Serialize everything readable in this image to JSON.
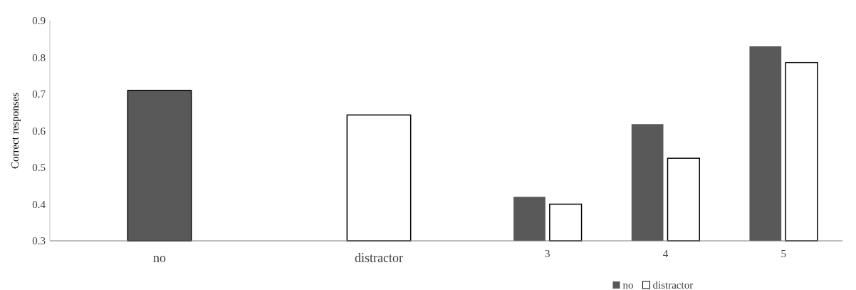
{
  "chart_data": [
    {
      "type": "bar",
      "ylabel": "Correct responses",
      "categories": [
        "no",
        "distractor"
      ],
      "values": [
        0.71,
        0.643
      ],
      "colors": [
        "#595959",
        "#ffffff"
      ],
      "ylim": [
        0.3,
        0.9
      ],
      "yticks": [
        0.3,
        0.4,
        0.5,
        0.6,
        0.7,
        0.8,
        0.9
      ],
      "legend": false
    },
    {
      "type": "bar",
      "categories": [
        "3",
        "4",
        "5"
      ],
      "series": [
        {
          "name": "no",
          "color": "#595959",
          "values": [
            0.42,
            0.618,
            0.83
          ]
        },
        {
          "name": "distractor",
          "color": "#ffffff",
          "values": [
            0.4,
            0.525,
            0.786
          ]
        }
      ],
      "ylim": [
        0.3,
        0.9
      ],
      "tick_labels": "x",
      "legend": "bottom"
    }
  ]
}
